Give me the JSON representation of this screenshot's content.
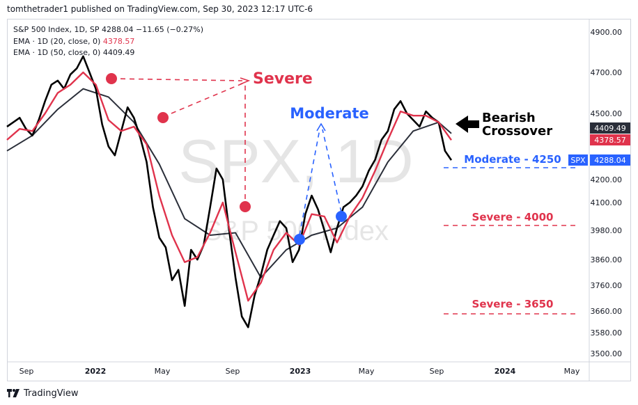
{
  "header": {
    "publisher": "tomthetrader1 published on TradingView.com, Sep 30, 2023 12:17 UTC-6"
  },
  "legend": {
    "main": {
      "name": "S&P 500 Index, 1D, SP",
      "price": "4288.04",
      "change": "−11.65 (−0.27%)"
    },
    "ema20": {
      "name": "EMA · 1D (20, close, 0)",
      "value": "4378.57"
    },
    "ema50": {
      "name": "EMA · 1D (50, close, 0)",
      "value": "4409.49"
    }
  },
  "watermark": {
    "symbol": "SPX, 1D",
    "name": "S&P 500 Index"
  },
  "footer": {
    "brand": "TradingView"
  },
  "colors": {
    "price": "#000000",
    "ema20": "#e0334c",
    "ema50": "#2a2e39",
    "severe": "#e0334c",
    "moderate": "#2962ff",
    "arrow": "#000000"
  },
  "chart_data": {
    "type": "line",
    "title": "S&P 500 Index, 1D",
    "ylim": [
      3500,
      4950
    ],
    "y_ticks": [
      "4900.00",
      "4700.00",
      "4500.00",
      "4200.00",
      "4100.00",
      "3980.00",
      "3860.00",
      "3760.00",
      "3660.00",
      "3580.00",
      "3500.00"
    ],
    "x_ticks": [
      "Sep",
      "2022",
      "May",
      "Sep",
      "2023",
      "May",
      "Sep",
      "2024",
      "May"
    ],
    "series": [
      {
        "name": "SPX close",
        "color": "#000000",
        "points": [
          [
            0,
            4440
          ],
          [
            0.5,
            4460
          ],
          [
            1,
            4480
          ],
          [
            1.5,
            4430
          ],
          [
            2,
            4400
          ],
          [
            2.5,
            4470
          ],
          [
            3,
            4560
          ],
          [
            3.5,
            4640
          ],
          [
            4,
            4660
          ],
          [
            4.5,
            4620
          ],
          [
            5,
            4690
          ],
          [
            5.5,
            4720
          ],
          [
            6,
            4780
          ],
          [
            6.5,
            4700
          ],
          [
            7,
            4620
          ],
          [
            7.5,
            4450
          ],
          [
            8,
            4350
          ],
          [
            8.5,
            4310
          ],
          [
            9,
            4420
          ],
          [
            9.5,
            4530
          ],
          [
            10,
            4480
          ],
          [
            10.5,
            4390
          ],
          [
            11,
            4280
          ],
          [
            11.5,
            4080
          ],
          [
            12,
            3950
          ],
          [
            12.5,
            3910
          ],
          [
            13,
            3780
          ],
          [
            13.5,
            3820
          ],
          [
            14,
            3680
          ],
          [
            14.5,
            3900
          ],
          [
            15,
            3860
          ],
          [
            15.5,
            3920
          ],
          [
            16,
            4080
          ],
          [
            16.5,
            4250
          ],
          [
            17,
            4200
          ],
          [
            17.5,
            3980
          ],
          [
            18,
            3790
          ],
          [
            18.5,
            3640
          ],
          [
            19,
            3600
          ],
          [
            19.5,
            3720
          ],
          [
            20,
            3800
          ],
          [
            20.5,
            3900
          ],
          [
            21,
            3960
          ],
          [
            21.5,
            4020
          ],
          [
            22,
            3990
          ],
          [
            22.5,
            3850
          ],
          [
            23,
            3900
          ],
          [
            23.5,
            4050
          ],
          [
            24,
            4130
          ],
          [
            24.5,
            4070
          ],
          [
            25,
            3980
          ],
          [
            25.5,
            3890
          ],
          [
            26,
            3990
          ],
          [
            26.5,
            4080
          ],
          [
            27,
            4100
          ],
          [
            27.5,
            4130
          ],
          [
            28,
            4170
          ],
          [
            28.5,
            4240
          ],
          [
            29,
            4290
          ],
          [
            29.5,
            4380
          ],
          [
            30,
            4420
          ],
          [
            30.5,
            4520
          ],
          [
            31,
            4560
          ],
          [
            31.5,
            4500
          ],
          [
            32,
            4470
          ],
          [
            32.5,
            4440
          ],
          [
            33,
            4510
          ],
          [
            33.5,
            4480
          ],
          [
            34,
            4460
          ],
          [
            34.5,
            4330
          ],
          [
            35,
            4288
          ]
        ]
      },
      {
        "name": "EMA 20",
        "color": "#e0334c",
        "value": "4378.57",
        "points": [
          [
            0,
            4380
          ],
          [
            1,
            4430
          ],
          [
            2,
            4420
          ],
          [
            3,
            4500
          ],
          [
            4,
            4600
          ],
          [
            5,
            4640
          ],
          [
            6,
            4700
          ],
          [
            7,
            4640
          ],
          [
            8,
            4470
          ],
          [
            9,
            4420
          ],
          [
            10,
            4440
          ],
          [
            11,
            4360
          ],
          [
            12,
            4130
          ],
          [
            13,
            3960
          ],
          [
            14,
            3850
          ],
          [
            15,
            3870
          ],
          [
            16,
            3970
          ],
          [
            17,
            4100
          ],
          [
            18,
            3890
          ],
          [
            19,
            3700
          ],
          [
            20,
            3770
          ],
          [
            21,
            3900
          ],
          [
            22,
            3970
          ],
          [
            23,
            3920
          ],
          [
            24,
            4050
          ],
          [
            25,
            4040
          ],
          [
            26,
            3930
          ],
          [
            27,
            4040
          ],
          [
            28,
            4120
          ],
          [
            29,
            4240
          ],
          [
            30,
            4380
          ],
          [
            31,
            4510
          ],
          [
            32,
            4490
          ],
          [
            33,
            4490
          ],
          [
            34,
            4460
          ],
          [
            35,
            4379
          ]
        ]
      },
      {
        "name": "EMA 50",
        "color": "#2a2e39",
        "value": "4409.49",
        "points": [
          [
            0,
            4330
          ],
          [
            2,
            4400
          ],
          [
            4,
            4520
          ],
          [
            6,
            4620
          ],
          [
            8,
            4580
          ],
          [
            10,
            4460
          ],
          [
            12,
            4270
          ],
          [
            14,
            4030
          ],
          [
            16,
            3960
          ],
          [
            18,
            3970
          ],
          [
            20,
            3790
          ],
          [
            22,
            3900
          ],
          [
            24,
            3960
          ],
          [
            26,
            3990
          ],
          [
            28,
            4080
          ],
          [
            30,
            4280
          ],
          [
            32,
            4420
          ],
          [
            34,
            4460
          ],
          [
            35,
            4409
          ]
        ]
      }
    ],
    "annotations": [
      {
        "label": "Severe",
        "color": "#e0334c"
      },
      {
        "label": "Moderate",
        "color": "#2962ff"
      },
      {
        "label": "Bearish",
        "color": "#000000"
      },
      {
        "label": "Crossover",
        "color": "#000000"
      },
      {
        "label": "Moderate - 4250",
        "color": "#2962ff",
        "level": 4250
      },
      {
        "label": "Severe - 4000",
        "color": "#e0334c",
        "level": 4000
      },
      {
        "label": "Severe - 3650",
        "color": "#e0334c",
        "level": 3650
      }
    ],
    "price_labels": [
      {
        "text": "4409.49",
        "color": "#2a2e39"
      },
      {
        "text": "4378.57",
        "color": "#e0334c"
      },
      {
        "text": "4288.04",
        "color": "#2962ff",
        "tag": "SPX"
      }
    ]
  }
}
